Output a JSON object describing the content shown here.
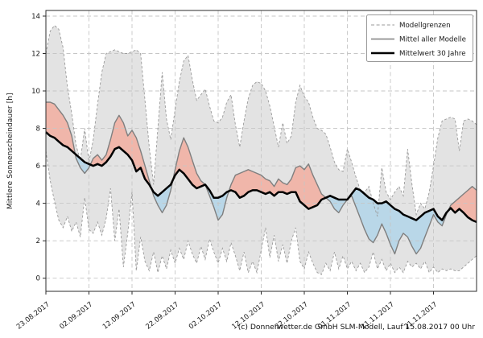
{
  "figure": {
    "caption": "(c) Donnerwetter.de GmbH SLM-Modell, Lauf 15.08.2017 00 Uhr"
  },
  "chart_data": {
    "type": "line",
    "title": "",
    "xlabel": "",
    "ylabel": "Mittlere Sonnenscheindauer [h]",
    "ylim": [
      -0.7,
      14.3
    ],
    "yticks": [
      0,
      2,
      4,
      6,
      8,
      10,
      12,
      14
    ],
    "grid": true,
    "legend_position": "upper right",
    "x_days_total": 100,
    "x_start_date": "23.08.2017",
    "x_tick_days": [
      0,
      10,
      20,
      30,
      40,
      50,
      60,
      70,
      80,
      90
    ],
    "x_tick_labels": [
      "23.08.2017",
      "02.09.2017",
      "12.09.2017",
      "22.09.2017",
      "02.10.2017",
      "12.10.2017",
      "22.10.2017",
      "01.11.2017",
      "11.11.2017",
      "21.11.2017"
    ],
    "legend": [
      "Modellgrenzen",
      "Mittel aller Modelle",
      "Mittelwert 30 Jahre"
    ],
    "colors": {
      "band": "#e3e3e3",
      "above_mean_fill": "#f0b6aa",
      "below_mean_fill": "#b9d7e8",
      "model_mean_line": "#7f7f7f",
      "mean_30y_line": "#000000",
      "bounds_line": "#9a9a9a",
      "grid_line": "#c6c6c6",
      "spine": "#2b2b2b",
      "text": "#1a1a1a"
    },
    "series": [
      {
        "name": "Modellgrenzen (obere Grenze)",
        "role": "upper_bound",
        "style": "dashed-gray",
        "values": [
          12.0,
          13.2,
          13.5,
          13.3,
          12.3,
          10.2,
          8.8,
          7.1,
          6.3,
          8.0,
          6.2,
          7.4,
          9.3,
          11.0,
          12.0,
          12.1,
          12.2,
          12.1,
          12.0,
          12.0,
          12.1,
          12.2,
          12.0,
          9.5,
          7.0,
          5.0,
          8.0,
          11.0,
          8.5,
          7.4,
          9.0,
          10.5,
          11.6,
          11.9,
          10.6,
          9.5,
          9.8,
          10.1,
          9.2,
          8.4,
          8.3,
          8.6,
          9.4,
          9.8,
          8.2,
          7.0,
          8.4,
          9.6,
          10.3,
          10.5,
          10.4,
          10.0,
          9.2,
          8.1,
          7.0,
          8.3,
          7.2,
          7.6,
          9.4,
          10.3,
          9.7,
          9.4,
          8.6,
          8.0,
          7.9,
          7.7,
          7.0,
          6.2,
          5.8,
          5.7,
          6.9,
          6.2,
          5.4,
          4.7,
          4.6,
          4.9,
          4.0,
          3.3,
          5.9,
          4.6,
          4.2,
          4.6,
          4.9,
          4.4,
          6.9,
          5.0,
          3.4,
          4.0,
          3.7,
          4.6,
          6.0,
          7.5,
          8.4,
          8.5,
          8.6,
          8.5,
          6.8,
          8.4,
          8.5,
          8.4,
          8.2
        ]
      },
      {
        "name": "Modellgrenzen (untere Grenze)",
        "role": "lower_bound",
        "style": "dashed-gray",
        "values": [
          6.8,
          5.2,
          4.1,
          3.1,
          2.7,
          3.3,
          2.5,
          3.0,
          2.2,
          4.3,
          2.6,
          2.4,
          3.0,
          2.3,
          3.2,
          4.8,
          2.0,
          3.7,
          0.6,
          2.4,
          4.6,
          0.4,
          2.2,
          0.9,
          0.4,
          1.4,
          0.3,
          1.2,
          0.5,
          1.5,
          0.8,
          1.6,
          1.0,
          2.0,
          1.3,
          0.8,
          1.7,
          1.0,
          2.1,
          1.4,
          0.8,
          1.6,
          0.9,
          1.9,
          1.2,
          0.4,
          1.4,
          0.3,
          0.9,
          0.3,
          1.5,
          2.7,
          1.1,
          2.3,
          0.9,
          1.8,
          0.8,
          2.0,
          2.7,
          0.9,
          0.5,
          1.4,
          0.8,
          0.3,
          0.2,
          0.8,
          0.4,
          1.4,
          0.5,
          1.2,
          0.5,
          0.9,
          0.4,
          0.8,
          0.3,
          0.6,
          1.4,
          0.5,
          1.0,
          0.4,
          0.8,
          0.3,
          0.6,
          0.3,
          0.9,
          0.6,
          0.8,
          0.5,
          0.9,
          0.3,
          0.6,
          0.3,
          0.5,
          0.4,
          0.5,
          0.4,
          0.4,
          0.6,
          0.8,
          1.0,
          1.2
        ]
      },
      {
        "name": "Mittel aller Modelle",
        "role": "model_mean",
        "style": "solid-gray",
        "values": [
          9.4,
          9.4,
          9.3,
          9.0,
          8.7,
          8.3,
          7.6,
          6.4,
          5.9,
          5.6,
          5.9,
          6.4,
          6.6,
          6.3,
          6.6,
          7.4,
          8.3,
          8.7,
          8.3,
          7.6,
          7.9,
          7.5,
          6.8,
          6.0,
          5.2,
          4.4,
          3.9,
          3.5,
          3.9,
          4.7,
          5.8,
          6.8,
          7.5,
          7.0,
          6.3,
          5.6,
          5.2,
          5.0,
          4.4,
          3.8,
          3.1,
          3.4,
          4.3,
          5.0,
          5.5,
          5.6,
          5.7,
          5.8,
          5.7,
          5.6,
          5.5,
          5.3,
          5.2,
          4.9,
          5.3,
          5.1,
          5.0,
          5.3,
          5.9,
          6.0,
          5.8,
          6.1,
          5.5,
          5.0,
          4.5,
          4.3,
          4.1,
          3.7,
          3.5,
          3.9,
          4.2,
          4.4,
          3.8,
          3.2,
          2.6,
          2.1,
          1.9,
          2.3,
          2.9,
          2.4,
          1.8,
          1.3,
          2.0,
          2.4,
          2.2,
          1.7,
          1.3,
          1.6,
          2.2,
          2.8,
          3.4,
          3.0,
          2.8,
          3.4,
          3.9,
          4.1,
          4.3,
          4.5,
          4.7,
          4.9,
          4.7
        ]
      },
      {
        "name": "Mittelwert 30 Jahre",
        "role": "mean_30y",
        "style": "solid-black-thick",
        "values": [
          7.8,
          7.6,
          7.5,
          7.3,
          7.1,
          7.0,
          6.8,
          6.6,
          6.4,
          6.2,
          6.1,
          6.0,
          6.1,
          6.0,
          6.2,
          6.5,
          6.9,
          7.0,
          6.8,
          6.6,
          6.3,
          5.7,
          5.9,
          5.3,
          5.0,
          4.6,
          4.4,
          4.6,
          4.8,
          5.0,
          5.5,
          5.8,
          5.6,
          5.3,
          5.0,
          4.8,
          4.9,
          5.0,
          4.7,
          4.3,
          4.3,
          4.4,
          4.6,
          4.7,
          4.6,
          4.3,
          4.4,
          4.6,
          4.7,
          4.7,
          4.6,
          4.5,
          4.6,
          4.4,
          4.6,
          4.6,
          4.5,
          4.6,
          4.6,
          4.1,
          3.9,
          3.7,
          3.8,
          3.9,
          4.2,
          4.3,
          4.4,
          4.3,
          4.2,
          4.2,
          4.2,
          4.5,
          4.8,
          4.7,
          4.5,
          4.3,
          4.2,
          4.0,
          4.0,
          4.1,
          3.9,
          3.7,
          3.6,
          3.4,
          3.3,
          3.2,
          3.1,
          3.3,
          3.5,
          3.6,
          3.7,
          3.3,
          3.1,
          3.5,
          3.75,
          3.5,
          3.7,
          3.5,
          3.25,
          3.1,
          3.0
        ]
      }
    ]
  }
}
